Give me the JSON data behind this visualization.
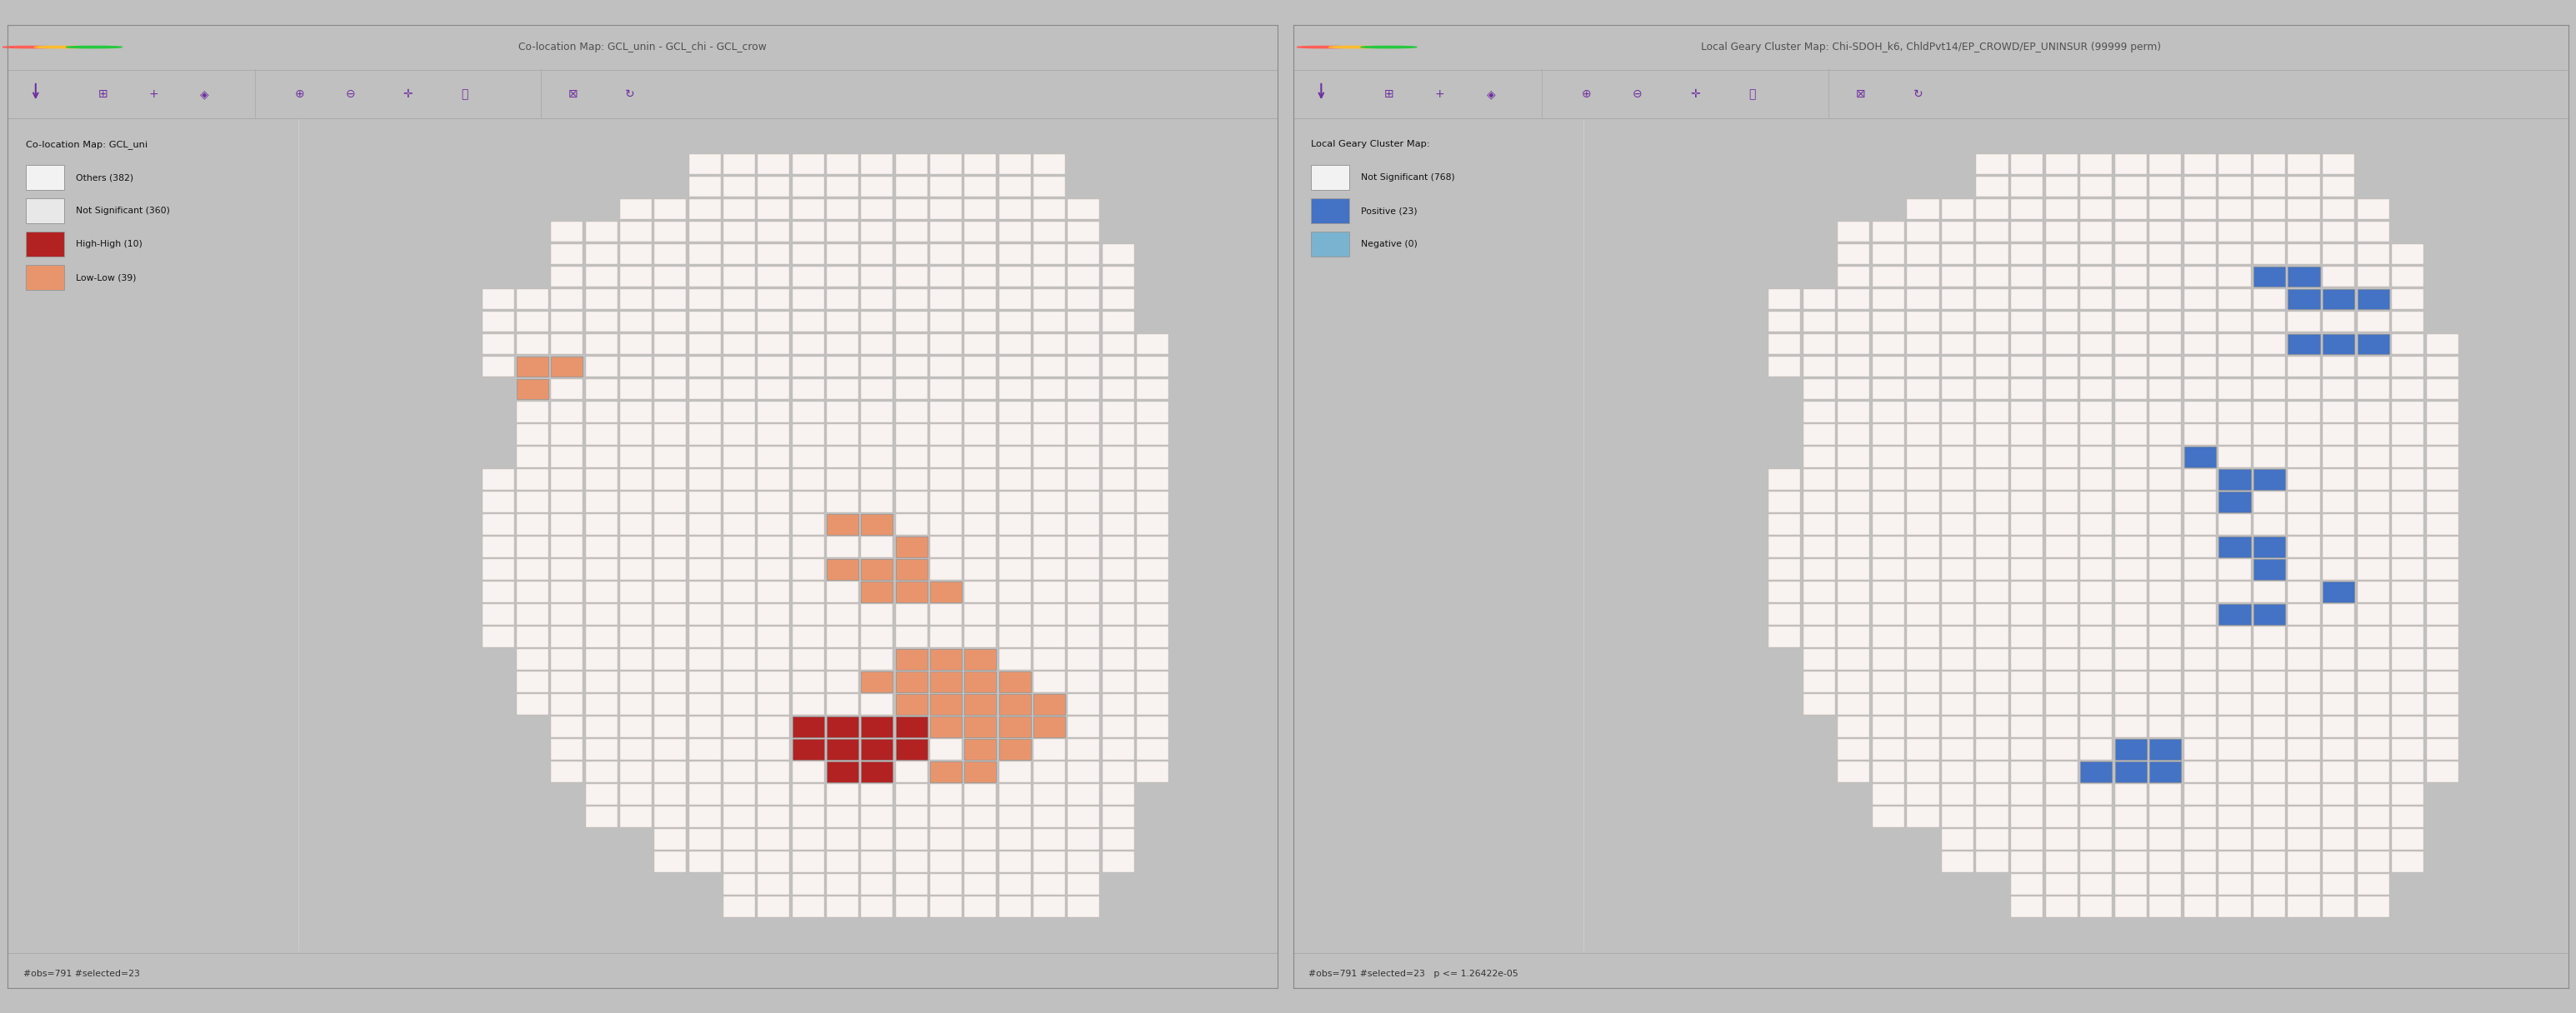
{
  "left_window": {
    "title_bar": "Co-location Map: GCL_unin - GCL_chi - GCL_crow",
    "bg_color": "#dcdcdc",
    "content_bg": "#ffffff",
    "legend_title": "Co-location Map: GCL_uni",
    "legend_items": [
      {
        "label": "Others (382)",
        "color": "#f2f2f2",
        "edge": "#bbbbbb"
      },
      {
        "label": "Not Significant (360)",
        "color": "#e8e8e8",
        "edge": "#bbbbbb"
      },
      {
        "label": "High-High (10)",
        "color": "#b22222",
        "edge": "#8b0000"
      },
      {
        "label": "Low-Low (39)",
        "color": "#e8956d",
        "edge": "#c07050"
      }
    ],
    "status_bar": "#obs=791 #selected=23"
  },
  "right_window": {
    "title_bar": "Local Geary Cluster Map: Chi-SDOH_k6, ChldPvt14/EP_CROWD/EP_UNINSUR (99999 perm)",
    "bg_color": "#dcdcdc",
    "content_bg": "#ffffff",
    "legend_title": "Local Geary Cluster Map:",
    "legend_items": [
      {
        "label": "Not Significant (768)",
        "color": "#f2f2f2",
        "edge": "#bbbbbb"
      },
      {
        "label": "Positive (23)",
        "color": "#4472c4",
        "edge": "#2255aa"
      },
      {
        "label": "Negative (0)",
        "color": "#7ab3d0",
        "edge": "#5590b0"
      }
    ],
    "status_bar": "#obs=791 #selected=23   p <= 1.26422e-05"
  },
  "bg_color": "#c0c0c0",
  "titlebar_bg": "#e0e0e0",
  "toolbar_bg": "#ebebeb",
  "statusbar_bg": "#e8e8e8",
  "window_bg": "#ffffff",
  "purple": "#7030a0",
  "dot_close": "#ff5f57",
  "dot_min": "#febc2e",
  "dot_max": "#28c840",
  "map_base_color": "#f5eeee",
  "map_edge_color": "#ccbbbb",
  "map_edge_width": 0.25
}
